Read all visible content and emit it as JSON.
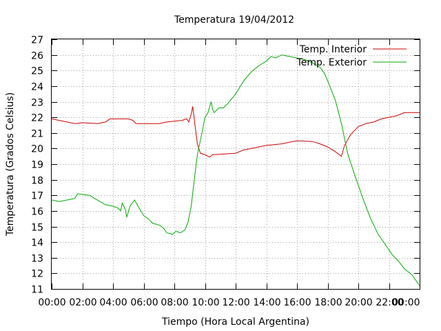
{
  "chart_data": {
    "type": "line",
    "title": "Temperatura 19/04/2012",
    "xlabel": "Tiempo (Hora Local Argentina)",
    "ylabel": "Temperatura (Grados Celsius)",
    "x_ticks": [
      "00:00",
      "02:00",
      "04:00",
      "06:00",
      "08:00",
      "10:00",
      "12:00",
      "14:00",
      "16:00",
      "18:00",
      "20:00",
      "22:00",
      "00:00"
    ],
    "y_ticks": [
      "11",
      "12",
      "13",
      "14",
      "15",
      "16",
      "17",
      "18",
      "19",
      "20",
      "21",
      "22",
      "23",
      "24",
      "25",
      "26",
      "27"
    ],
    "xlim": [
      0,
      24
    ],
    "ylim": [
      11,
      27
    ],
    "grid": true,
    "legend_position": "top-right",
    "series": [
      {
        "name": "Temp. Interior",
        "color": "#cc0000",
        "points": [
          [
            0,
            21.9
          ],
          [
            0.5,
            21.8
          ],
          [
            1,
            21.7
          ],
          [
            1.5,
            21.6
          ],
          [
            2,
            21.65
          ],
          [
            3,
            21.6
          ],
          [
            3.5,
            21.7
          ],
          [
            3.8,
            21.9
          ],
          [
            5,
            21.9
          ],
          [
            5.3,
            21.8
          ],
          [
            5.5,
            21.6
          ],
          [
            7,
            21.6
          ],
          [
            7.5,
            21.7
          ],
          [
            8.5,
            21.8
          ],
          [
            8.8,
            21.9
          ],
          [
            8.95,
            21.7
          ],
          [
            9.1,
            22.2
          ],
          [
            9.2,
            22.7
          ],
          [
            9.35,
            21.5
          ],
          [
            9.5,
            20.3
          ],
          [
            9.7,
            19.7
          ],
          [
            10,
            19.6
          ],
          [
            10.3,
            19.45
          ],
          [
            10.5,
            19.6
          ],
          [
            12,
            19.7
          ],
          [
            12.5,
            19.9
          ],
          [
            13,
            20.0
          ],
          [
            13.5,
            20.1
          ],
          [
            14,
            20.2
          ],
          [
            15,
            20.3
          ],
          [
            15.5,
            20.4
          ],
          [
            16,
            20.5
          ],
          [
            17,
            20.45
          ],
          [
            17.5,
            20.3
          ],
          [
            18,
            20.1
          ],
          [
            18.5,
            19.8
          ],
          [
            18.9,
            19.5
          ],
          [
            19.1,
            20.2
          ],
          [
            19.5,
            20.9
          ],
          [
            20,
            21.4
          ],
          [
            20.5,
            21.6
          ],
          [
            21,
            21.7
          ],
          [
            21.5,
            21.9
          ],
          [
            22,
            22.0
          ],
          [
            22.5,
            22.1
          ],
          [
            23,
            22.3
          ],
          [
            24,
            22.3
          ]
        ]
      },
      {
        "name": "Temp. Exterior",
        "color": "#00aa00",
        "points": [
          [
            0,
            16.7
          ],
          [
            0.5,
            16.6
          ],
          [
            1,
            16.7
          ],
          [
            1.5,
            16.8
          ],
          [
            1.7,
            17.1
          ],
          [
            2.5,
            17.0
          ],
          [
            2.8,
            16.8
          ],
          [
            3.5,
            16.4
          ],
          [
            4,
            16.3
          ],
          [
            4.3,
            16.2
          ],
          [
            4.5,
            16.0
          ],
          [
            4.6,
            16.5
          ],
          [
            4.8,
            16.1
          ],
          [
            4.9,
            15.6
          ],
          [
            5.1,
            16.3
          ],
          [
            5.4,
            16.7
          ],
          [
            5.7,
            16.2
          ],
          [
            6,
            15.7
          ],
          [
            6.3,
            15.5
          ],
          [
            6.6,
            15.2
          ],
          [
            7,
            15.1
          ],
          [
            7.3,
            14.9
          ],
          [
            7.5,
            14.6
          ],
          [
            7.9,
            14.5
          ],
          [
            8.1,
            14.7
          ],
          [
            8.4,
            14.6
          ],
          [
            8.7,
            14.8
          ],
          [
            8.9,
            15.3
          ],
          [
            9.1,
            16.3
          ],
          [
            9.3,
            18.0
          ],
          [
            9.5,
            19.6
          ],
          [
            9.8,
            21.0
          ],
          [
            10,
            22.0
          ],
          [
            10.2,
            22.3
          ],
          [
            10.4,
            23.0
          ],
          [
            10.5,
            22.5
          ],
          [
            10.6,
            22.3
          ],
          [
            10.9,
            22.6
          ],
          [
            11.2,
            22.6
          ],
          [
            11.5,
            22.9
          ],
          [
            12,
            23.5
          ],
          [
            12.5,
            24.3
          ],
          [
            13,
            24.9
          ],
          [
            13.5,
            25.3
          ],
          [
            14,
            25.6
          ],
          [
            14.3,
            25.9
          ],
          [
            14.6,
            25.8
          ],
          [
            15,
            26.0
          ],
          [
            15.5,
            25.9
          ],
          [
            16,
            25.8
          ],
          [
            16.5,
            25.7
          ],
          [
            17,
            25.5
          ],
          [
            17.5,
            25.2
          ],
          [
            17.8,
            24.8
          ],
          [
            18.1,
            24.1
          ],
          [
            18.5,
            23.1
          ],
          [
            18.9,
            21.6
          ],
          [
            19.3,
            19.7
          ],
          [
            19.8,
            18.2
          ],
          [
            20.3,
            16.8
          ],
          [
            20.8,
            15.5
          ],
          [
            21.3,
            14.5
          ],
          [
            21.8,
            13.8
          ],
          [
            22.2,
            13.2
          ],
          [
            22.6,
            12.8
          ],
          [
            23,
            12.3
          ],
          [
            23.5,
            11.9
          ],
          [
            24,
            11.2
          ]
        ]
      }
    ]
  }
}
